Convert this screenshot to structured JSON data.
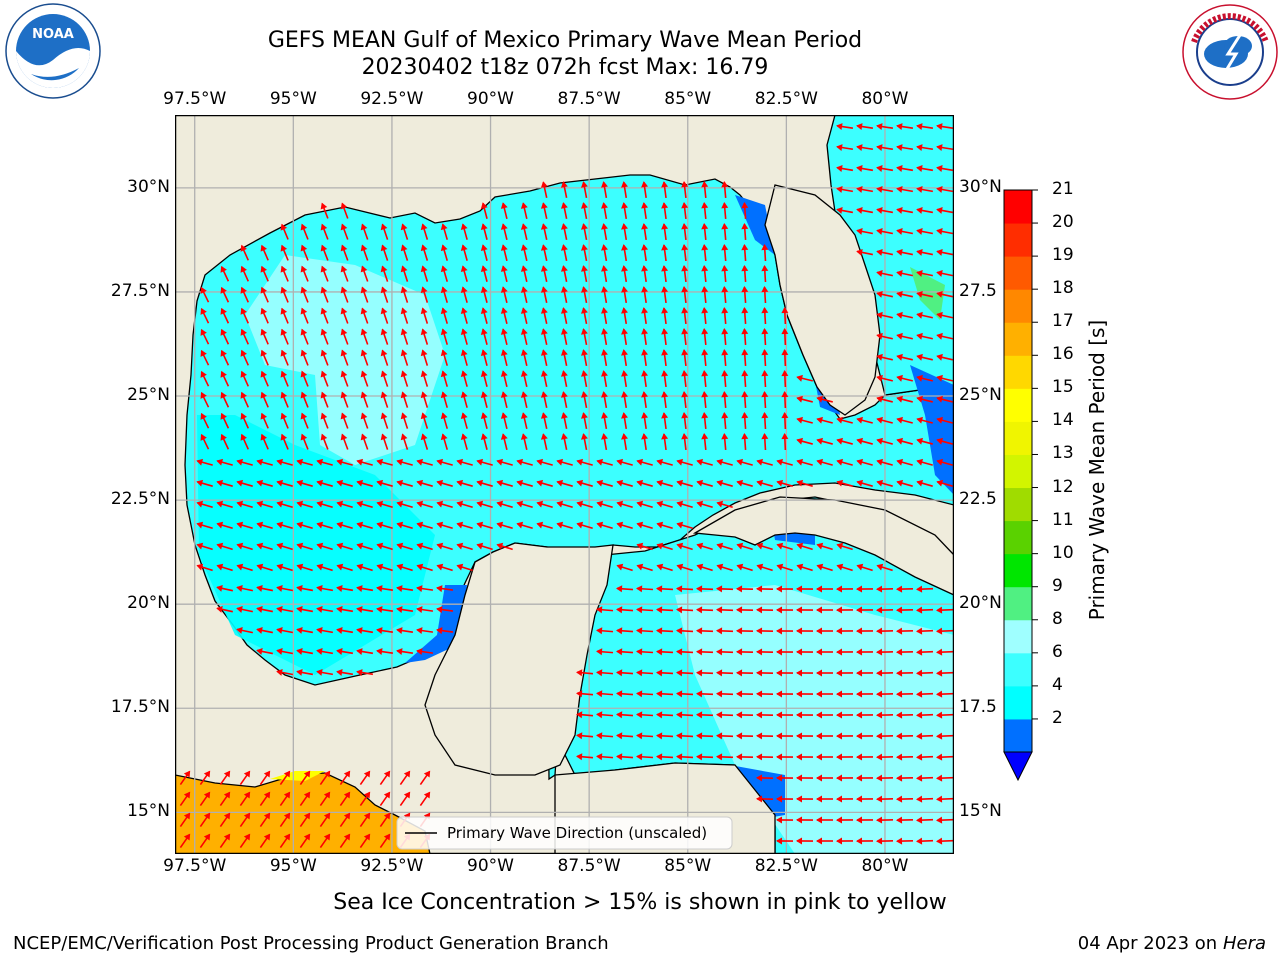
{
  "header": {
    "title_line1": "GEFS MEAN Gulf of Mexico Primary Wave Mean Period",
    "title_line2": "20230402 t18z 072h fcst   Max: 16.79"
  },
  "logos": {
    "left": "NOAA",
    "left_ring": "NATIONAL OCEANIC AND ATMOSPHERIC ADMINISTRATION · U.S. DEPARTMENT OF COMMERCE",
    "right_ring": "NATIONAL WEATHER SERVICE"
  },
  "map": {
    "lon_labels": [
      "97.5°W",
      "95°W",
      "92.5°W",
      "90°W",
      "87.5°W",
      "85°W",
      "82.5°W",
      "80°W"
    ],
    "lat_labels": [
      "30°N",
      "27.5°N",
      "25°N",
      "22.5°N",
      "20°N",
      "17.5°N",
      "15°N"
    ],
    "lat_labels_right": [
      "30°N",
      "27.5",
      "25°N",
      "22.5",
      "20°N",
      "17.5",
      "15°N"
    ],
    "lon_range": [
      -98,
      -78.25
    ],
    "lat_range": [
      14,
      31.75
    ],
    "land_color": "#efecdc",
    "arrow_color": "#ff0000",
    "legend_label": "Primary Wave Direction (unscaled)"
  },
  "colorbar": {
    "label": "Primary Wave Mean Period [s]",
    "ticks": [
      "21",
      "20",
      "19",
      "18",
      "17",
      "16",
      "15",
      "14",
      "13",
      "12",
      "11",
      "10",
      "9",
      "8",
      "6",
      "4",
      "2"
    ],
    "colors_bottom_to_top": [
      "#0070ff",
      "#00ffff",
      "#3cffff",
      "#9fffff",
      "#50f082",
      "#00e600",
      "#5ad200",
      "#a0dc00",
      "#d2f500",
      "#f0f500",
      "#ffff00",
      "#ffd800",
      "#ffb000",
      "#ff8800",
      "#ff5a00",
      "#ff2d00",
      "#ff0000"
    ],
    "extend_color": "#0000ff"
  },
  "notes": {
    "sea_ice": "Sea Ice Concentration > 15% is shown in pink to yellow"
  },
  "footer": {
    "left": "NCEP/EMC/Verification Post Processing Product Generation Branch",
    "right_date": "04 Apr 2023 on",
    "right_host": "Hera"
  }
}
